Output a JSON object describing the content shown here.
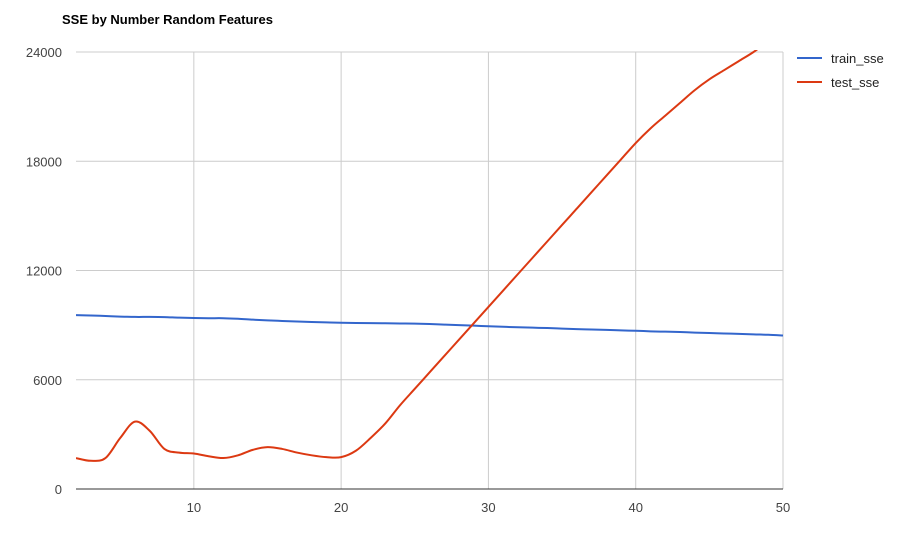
{
  "chart_data": {
    "type": "line",
    "title": "SSE by Number Random Features",
    "xlabel": "",
    "ylabel": "",
    "xlim": [
      2,
      50
    ],
    "ylim": [
      0,
      24000
    ],
    "x_ticks": [
      10,
      20,
      30,
      40,
      50
    ],
    "y_ticks": [
      0,
      6000,
      12000,
      18000,
      24000
    ],
    "grid": true,
    "legend_position": "right",
    "x": [
      2,
      3,
      4,
      5,
      6,
      7,
      8,
      9,
      10,
      11,
      12,
      13,
      14,
      15,
      16,
      17,
      18,
      19,
      20,
      21,
      22,
      23,
      24,
      25,
      26,
      27,
      28,
      29,
      30,
      31,
      32,
      33,
      34,
      35,
      36,
      37,
      38,
      39,
      40,
      41,
      42,
      43,
      44,
      45,
      46,
      47,
      48,
      49,
      50
    ],
    "series": [
      {
        "name": "train_sse",
        "color": "#3366cc",
        "values": [
          9550,
          9530,
          9500,
          9470,
          9450,
          9450,
          9440,
          9410,
          9390,
          9380,
          9380,
          9350,
          9300,
          9260,
          9230,
          9200,
          9170,
          9150,
          9130,
          9120,
          9110,
          9100,
          9090,
          9080,
          9060,
          9030,
          9000,
          8970,
          8940,
          8910,
          8880,
          8860,
          8840,
          8810,
          8780,
          8760,
          8740,
          8710,
          8690,
          8660,
          8640,
          8620,
          8590,
          8570,
          8540,
          8520,
          8490,
          8470,
          8430
        ]
      },
      {
        "name": "test_sse",
        "color": "#dc3912",
        "values": [
          1700,
          1550,
          1700,
          2800,
          3700,
          3200,
          2200,
          2000,
          1950,
          1800,
          1700,
          1850,
          2150,
          2300,
          2200,
          2000,
          1850,
          1750,
          1750,
          2100,
          2800,
          3600,
          4600,
          5500,
          6400,
          7300,
          8200,
          9100,
          10000,
          10900,
          11800,
          12700,
          13600,
          14500,
          15400,
          16300,
          17200,
          18100,
          19000,
          19800,
          20500,
          21200,
          21900,
          22500,
          23000,
          23500,
          24000,
          24600,
          25200
        ]
      }
    ]
  }
}
